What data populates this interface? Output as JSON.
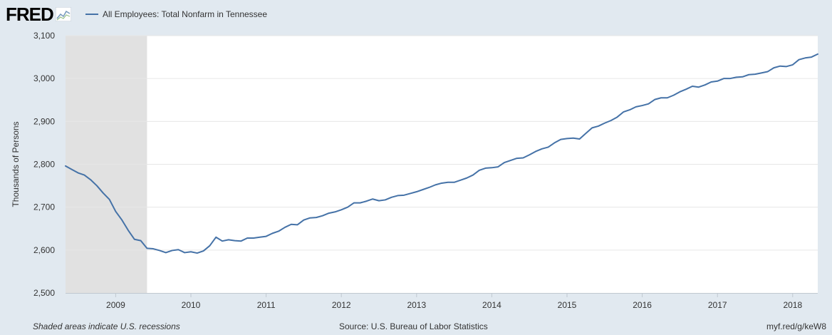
{
  "header": {
    "logo_text": "FRED",
    "logo_icon": "fred-chart-icon"
  },
  "footer": {
    "note": "Shaded areas indicate U.S. recessions",
    "source": "Source: U.S. Bureau of Labor Statistics",
    "link": "myf.red/g/keW8"
  },
  "colors": {
    "series": "#4572a7",
    "recession": "#e1e1e1",
    "plot_bg": "#ffffff",
    "page_bg": "#e1e9f0",
    "grid": "#e6e6e6"
  },
  "chart_data": {
    "type": "line",
    "title": "",
    "xlabel": "",
    "ylabel": "Thousands of Persons",
    "xlim": [
      "2008-05",
      "2018-05"
    ],
    "ylim": [
      2500,
      3100
    ],
    "yticks": [
      2500,
      2600,
      2700,
      2800,
      2900,
      3000,
      3100
    ],
    "ytick_labels": [
      "2,500",
      "2,600",
      "2,700",
      "2,800",
      "2,900",
      "3,000",
      "3,100"
    ],
    "xticks": [
      "2009-01",
      "2010-01",
      "2011-01",
      "2012-01",
      "2013-01",
      "2014-01",
      "2015-01",
      "2016-01",
      "2017-01",
      "2018-01"
    ],
    "xtick_labels": [
      "2009",
      "2010",
      "2011",
      "2012",
      "2013",
      "2014",
      "2015",
      "2016",
      "2017",
      "2018"
    ],
    "grid": true,
    "legend": "top-left",
    "recessions": [
      [
        "2008-05",
        "2009-06"
      ]
    ],
    "series": [
      {
        "name": "All Employees: Total Nonfarm in Tennessee",
        "x": [
          "2008-05",
          "2008-06",
          "2008-07",
          "2008-08",
          "2008-09",
          "2008-10",
          "2008-11",
          "2008-12",
          "2009-01",
          "2009-02",
          "2009-03",
          "2009-04",
          "2009-05",
          "2009-06",
          "2009-07",
          "2009-08",
          "2009-09",
          "2009-10",
          "2009-11",
          "2009-12",
          "2010-01",
          "2010-02",
          "2010-03",
          "2010-04",
          "2010-05",
          "2010-06",
          "2010-07",
          "2010-08",
          "2010-09",
          "2010-10",
          "2010-11",
          "2010-12",
          "2011-01",
          "2011-02",
          "2011-03",
          "2011-04",
          "2011-05",
          "2011-06",
          "2011-07",
          "2011-08",
          "2011-09",
          "2011-10",
          "2011-11",
          "2011-12",
          "2012-01",
          "2012-02",
          "2012-03",
          "2012-04",
          "2012-05",
          "2012-06",
          "2012-07",
          "2012-08",
          "2012-09",
          "2012-10",
          "2012-11",
          "2012-12",
          "2013-01",
          "2013-02",
          "2013-03",
          "2013-04",
          "2013-05",
          "2013-06",
          "2013-07",
          "2013-08",
          "2013-09",
          "2013-10",
          "2013-11",
          "2013-12",
          "2014-01",
          "2014-02",
          "2014-03",
          "2014-04",
          "2014-05",
          "2014-06",
          "2014-07",
          "2014-08",
          "2014-09",
          "2014-10",
          "2014-11",
          "2014-12",
          "2015-01",
          "2015-02",
          "2015-03",
          "2015-04",
          "2015-05",
          "2015-06",
          "2015-07",
          "2015-08",
          "2015-09",
          "2015-10",
          "2015-11",
          "2015-12",
          "2016-01",
          "2016-02",
          "2016-03",
          "2016-04",
          "2016-05",
          "2016-06",
          "2016-07",
          "2016-08",
          "2016-09",
          "2016-10",
          "2016-11",
          "2016-12",
          "2017-01",
          "2017-02",
          "2017-03",
          "2017-04",
          "2017-05",
          "2017-06",
          "2017-07",
          "2017-08",
          "2017-09",
          "2017-10",
          "2017-11",
          "2017-12",
          "2018-01",
          "2018-02",
          "2018-03",
          "2018-04",
          "2018-05"
        ],
        "values": [
          2796,
          2788,
          2780,
          2775,
          2764,
          2750,
          2733,
          2718,
          2690,
          2670,
          2646,
          2625,
          2622,
          2604,
          2603,
          2599,
          2594,
          2599,
          2601,
          2594,
          2596,
          2593,
          2598,
          2610,
          2630,
          2621,
          2624,
          2622,
          2621,
          2628,
          2628,
          2630,
          2632,
          2639,
          2644,
          2653,
          2660,
          2659,
          2670,
          2675,
          2676,
          2680,
          2686,
          2689,
          2694,
          2700,
          2710,
          2710,
          2714,
          2719,
          2715,
          2717,
          2723,
          2727,
          2728,
          2732,
          2736,
          2741,
          2746,
          2752,
          2756,
          2758,
          2758,
          2763,
          2768,
          2775,
          2786,
          2791,
          2792,
          2794,
          2804,
          2809,
          2814,
          2815,
          2822,
          2830,
          2836,
          2840,
          2850,
          2858,
          2860,
          2861,
          2859,
          2872,
          2885,
          2889,
          2896,
          2902,
          2910,
          2922,
          2927,
          2934,
          2937,
          2941,
          2951,
          2955,
          2955,
          2961,
          2969,
          2975,
          2982,
          2980,
          2985,
          2992,
          2994,
          3000,
          3000,
          3003,
          3004,
          3009,
          3010,
          3013,
          3016,
          3025,
          3029,
          3028,
          3032,
          3044,
          3048,
          3050,
          3057
        ]
      }
    ]
  }
}
